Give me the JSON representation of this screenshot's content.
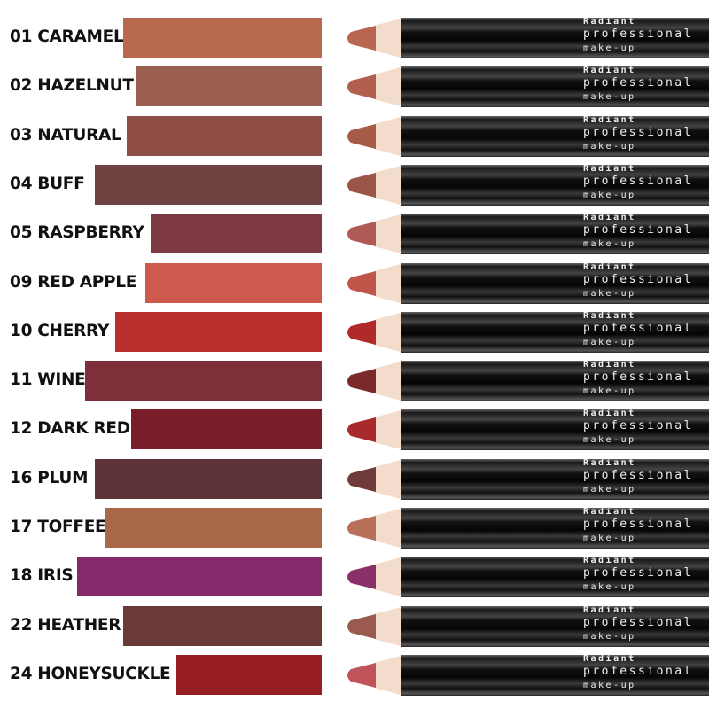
{
  "brand": {
    "line1": "Radiant",
    "line2": "professional",
    "line3": "make-up"
  },
  "shades": [
    {
      "label": "01 CARAMEL",
      "color": "#b86a4f",
      "tip": "#b8664f"
    },
    {
      "label": "02 HAZELNUT",
      "color": "#9b604f",
      "tip": "#b0604c"
    },
    {
      "label": "03 NATURAL",
      "color": "#8e4d45",
      "tip": "#a65a48"
    },
    {
      "label": "04 BUFF",
      "color": "#6e4240",
      "tip": "#9a5548"
    },
    {
      "label": "05 RASPBERRY",
      "color": "#7d3a42",
      "tip": "#b05a58"
    },
    {
      "label": "09 RED APPLE",
      "color": "#cc5a4e",
      "tip": "#c0564a"
    },
    {
      "label": "10 CHERRY",
      "color": "#b82f2e",
      "tip": "#b02a2a"
    },
    {
      "label": "11 WINE",
      "color": "#7d3039",
      "tip": "#7a2a2a"
    },
    {
      "label": "12 DARK RED",
      "color": "#7a1c29",
      "tip": "#a82a2a"
    },
    {
      "label": "16 PLUM",
      "color": "#5c3439",
      "tip": "#6e3a3a"
    },
    {
      "label": "17 TOFFEE",
      "color": "#a8694a",
      "tip": "#b8705a"
    },
    {
      "label": "18 IRIS",
      "color": "#842a6a",
      "tip": "#8a3068"
    },
    {
      "label": "22 HEATHER",
      "color": "#6a3a36",
      "tip": "#9a5a50"
    },
    {
      "label": "24 HONEYSUCKLE",
      "color": "#961d20",
      "tip": "#c0545a"
    }
  ]
}
